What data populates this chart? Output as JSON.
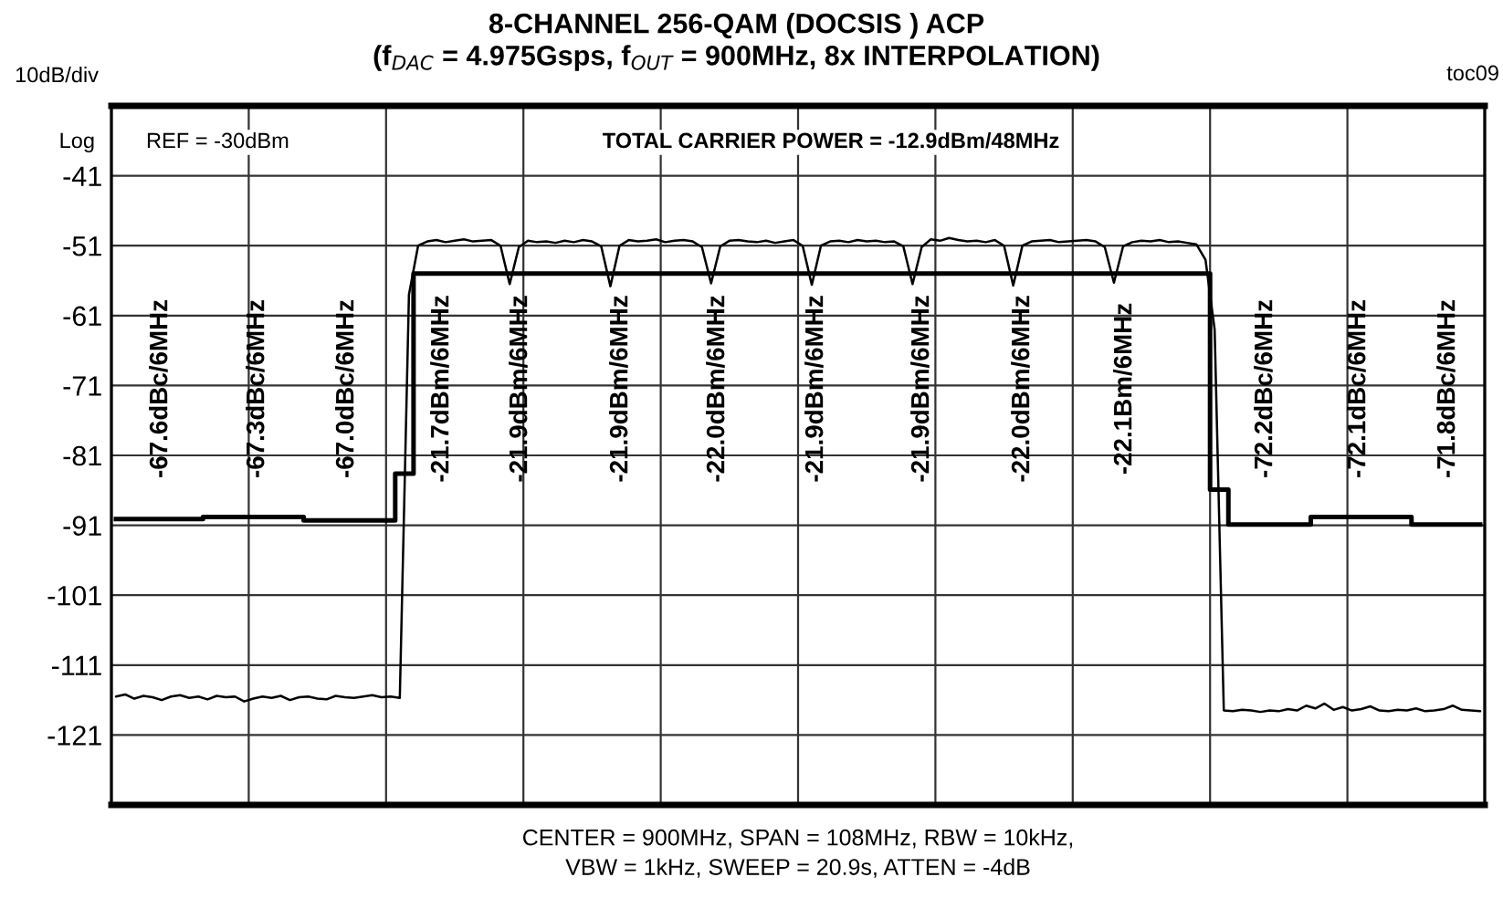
{
  "chart_data": {
    "type": "line",
    "title": "8-CHANNEL 256-QAM (DOCSIS ) ACP\n(f$_{DAC}$ = 4.975Gsps, f$_{OUT}$ = 900MHz, 8x INTERPOLATION)",
    "categories": [
      null,
      null,
      null,
      null,
      null,
      null,
      null,
      null,
      null,
      null,
      null,
      null,
      null,
      null,
      null,
      null,
      null,
      null,
      null,
      null,
      null,
      null,
      null,
      null,
      null,
      null,
      null,
      null,
      null,
      null,
      null,
      null,
      null,
      null,
      null,
      null,
      null,
      null,
      null,
      null,
      null,
      null,
      null,
      null,
      null,
      null,
      null,
      null,
      null,
      null,
      null,
      null,
      null,
      null,
      null,
      null,
      null,
      null,
      null,
      null,
      null,
      null,
      null,
      null,
      null,
      null,
      null,
      null,
      null,
      null,
      null,
      null,
      null,
      null,
      null,
      null,
      null,
      null,
      null,
      null,
      null,
      null,
      null,
      null,
      null,
      null,
      null,
      null,
      null,
      null,
      null,
      null,
      null,
      null,
      null,
      null,
      null,
      null,
      null,
      null,
      null,
      null,
      null,
      null,
      null,
      null,
      null,
      null,
      null,
      null,
      null,
      null,
      null,
      null,
      null,
      null,
      null,
      null,
      null,
      null,
      null,
      null,
      null,
      null,
      null,
      null,
      null,
      null,
      null,
      null,
      null,
      null,
      null,
      null,
      null,
      null,
      null,
      null,
      null,
      null,
      null,
      null,
      null,
      null,
      null,
      null,
      null,
      null,
      null,
      null
    ],
    "series": [
      {
        "color": "#000000",
        "values": [
          -115.5,
          -115.2,
          -115.8,
          -115.4,
          -115.6,
          -116.0,
          -115.5,
          -115.3,
          -115.7,
          -115.5,
          -115.9,
          -115.4,
          -115.6,
          -115.5,
          -116.2,
          -115.8,
          -115.5,
          -115.7,
          -115.4,
          -116.0,
          -115.6,
          -115.5,
          -115.8,
          -115.9,
          -115.4,
          -115.6,
          -115.7,
          -115.5,
          -115.3,
          -115.6,
          -115.5,
          -115.7,
          -58.0,
          -51.0,
          -50.4,
          -50.2,
          -50.5,
          -50.3,
          -50.1,
          -50.4,
          -50.3,
          -50.2,
          -51.0,
          -56.5,
          -51.2,
          -50.3,
          -50.5,
          -50.4,
          -50.6,
          -50.3,
          -50.5,
          -50.2,
          -50.4,
          -51.1,
          -56.8,
          -51.0,
          -50.2,
          -50.4,
          -50.3,
          -50.1,
          -50.5,
          -50.3,
          -50.2,
          -50.4,
          -51.2,
          -56.4,
          -51.1,
          -50.3,
          -50.2,
          -50.4,
          -50.5,
          -50.3,
          -50.6,
          -50.4,
          -50.2,
          -51.0,
          -56.6,
          -51.0,
          -50.4,
          -50.3,
          -50.5,
          -50.2,
          -50.4,
          -50.3,
          -50.5,
          -50.4,
          -51.1,
          -56.5,
          -51.2,
          -50.1,
          -50.3,
          -49.9,
          -50.2,
          -50.4,
          -50.3,
          -50.5,
          -50.2,
          -51.0,
          -56.7,
          -51.0,
          -50.4,
          -50.3,
          -50.2,
          -50.5,
          -50.4,
          -50.3,
          -50.2,
          -50.4,
          -51.2,
          -56.3,
          -51.1,
          -50.5,
          -50.3,
          -50.4,
          -50.2,
          -50.5,
          -50.4,
          -50.6,
          -50.8,
          -53.0,
          -63.0,
          -117.5,
          -117.6,
          -117.4,
          -117.5,
          -117.7,
          -117.5,
          -117.6,
          -117.3,
          -117.5,
          -116.8,
          -117.2,
          -116.5,
          -117.4,
          -117.0,
          -117.5,
          -117.3,
          -116.9,
          -117.5,
          -117.6,
          -117.4,
          -117.5,
          -117.2,
          -117.6,
          -117.5,
          -117.3,
          -116.8,
          -117.4,
          -117.5,
          -117.6
        ]
      },
      {
        "type": "step",
        "color": "#000000",
        "values": [
          -90.1,
          -90.1,
          -90.1,
          -90.1,
          -90.1,
          -90.1,
          -90.1,
          -90.1,
          -90.1,
          -90.1,
          -89.8,
          -89.8,
          -89.8,
          -89.8,
          -89.8,
          -89.8,
          -89.8,
          -89.8,
          -89.8,
          -89.8,
          -89.8,
          -90.3,
          -90.3,
          -90.3,
          -90.3,
          -90.3,
          -90.3,
          -90.3,
          -90.3,
          -90.3,
          -90.3,
          -83.6,
          -83.6,
          -55,
          -55,
          -55,
          -55,
          -55,
          -55,
          -55,
          -55,
          -55,
          -55,
          -55,
          -55,
          -55,
          -55,
          -55,
          -55,
          -55,
          -55,
          -55,
          -55,
          -55,
          -55,
          -55,
          -55,
          -55,
          -55,
          -55,
          -55,
          -55,
          -55,
          -55,
          -55,
          -55,
          -55,
          -55,
          -55,
          -55,
          -55,
          -55,
          -55,
          -55,
          -55,
          -55,
          -55,
          -55,
          -55,
          -55,
          -55,
          -55,
          -55,
          -55,
          -55,
          -55,
          -55,
          -55,
          -55,
          -55,
          -55,
          -55,
          -55,
          -55,
          -55,
          -55,
          -55,
          -55,
          -55,
          -55,
          -55,
          -55,
          -55,
          -55,
          -55,
          -55,
          -55,
          -55,
          -55,
          -55,
          -55,
          -55,
          -55,
          -55,
          -55,
          -55,
          -55,
          -55,
          -55,
          -55,
          -85.9,
          -85.9,
          -90.9,
          -90.9,
          -90.9,
          -90.9,
          -90.9,
          -90.9,
          -90.9,
          -90.9,
          -90.9,
          -89.8,
          -89.8,
          -89.8,
          -89.8,
          -89.8,
          -89.8,
          -89.8,
          -89.8,
          -89.8,
          -89.8,
          -89.8,
          -90.9,
          -90.9,
          -90.9,
          -90.9,
          -90.9,
          -90.9,
          -90.9,
          -90.9
        ]
      }
    ],
    "ylim": [
      -131,
      -31
    ],
    "yticks": [
      -41,
      -51,
      -61,
      -71,
      -81,
      -91,
      -101,
      -111,
      -121
    ],
    "grid": true,
    "tick_labels": "y",
    "annotations": [
      "-67.6dBc/6MHz",
      "-67.3dBc/6MHz",
      "-67.0dBc/6MHz",
      "-21.7dBm/6MHz",
      "-21.9dBm/6MHz",
      "-21.9dBm/6MHz",
      "-22.0dBm/6MHz",
      "-21.9dBm/6MHz",
      "-21.9dBm/6MHz",
      "-22.0dBm/6MHz",
      "-22.1Bm/6MHz",
      "-72.2dBc/6MHz",
      "-72.1dBc/6MHz",
      "-71.8dBc/6MHz",
      "REF = -30dBm",
      "TOTAL CARRIER POWER = -12.9dBm/48MHz",
      "10dB/div",
      "Log",
      "toc09",
      "CENTER = 900MHz, SPAN = 108MHz, RBW = 10kHz,\nVBW = 1kHz, SWEEP = 20.9s, ATTEN = -4dB"
    ]
  }
}
